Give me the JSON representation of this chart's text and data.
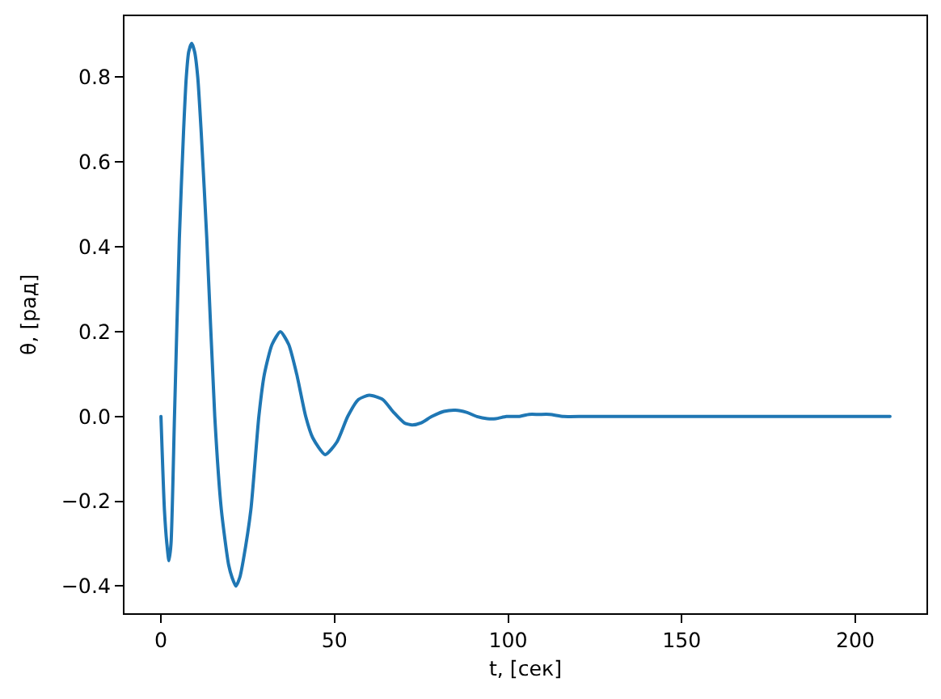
{
  "chart_data": {
    "type": "line",
    "xlabel": "t, [сек]",
    "ylabel": "θ, [рад]",
    "x": [
      0,
      1,
      1.7,
      2.3,
      2.9,
      3.9,
      5.3,
      6.5,
      7.3,
      8,
      8.85,
      9.7,
      10.6,
      11.6,
      13.2,
      15.5,
      17.4,
      19.5,
      20.5,
      21.6,
      22.7,
      23.7,
      25.9,
      28.2,
      29.8,
      32,
      34.4,
      36.8,
      39.1,
      41.7,
      43.7,
      47.3,
      50.7,
      53.8,
      56.9,
      60,
      63.9,
      67,
      70.1,
      72.4,
      75,
      78,
      81.5,
      84.8,
      88,
      91,
      94,
      96.5,
      99.5,
      103,
      106,
      108.8,
      112,
      116,
      122,
      130,
      140,
      160,
      180,
      210
    ],
    "series": [
      {
        "color": "#1f77b4",
        "values": [
          0,
          -0.22,
          -0.3,
          -0.34,
          -0.3,
          0,
          0.42,
          0.67,
          0.8,
          0.86,
          0.88,
          0.86,
          0.8,
          0.67,
          0.42,
          0,
          -0.22,
          -0.35,
          -0.38,
          -0.4,
          -0.38,
          -0.34,
          -0.22,
          0,
          0.1,
          0.17,
          0.2,
          0.17,
          0.1,
          0,
          -0.05,
          -0.09,
          -0.06,
          0,
          0.04,
          0.05,
          0.04,
          0.01,
          -0.015,
          -0.02,
          -0.015,
          0,
          0.012,
          0.015,
          0.01,
          0,
          -0.005,
          -0.005,
          0,
          0,
          0.005,
          0.005,
          0.005,
          0,
          0,
          0,
          0,
          0,
          0,
          0
        ]
      }
    ],
    "xlim": [
      -10.5,
      220.5
    ],
    "ylim": [
      -0.464,
      0.944
    ],
    "xticks": [
      0,
      50,
      100,
      150,
      200
    ],
    "yticks": [
      {
        "value": -0.4,
        "label": "−0.4"
      },
      {
        "value": -0.2,
        "label": "−0.2"
      },
      {
        "value": 0,
        "label": "0.0"
      },
      0.2,
      0.4,
      0.6,
      0.8
    ]
  }
}
